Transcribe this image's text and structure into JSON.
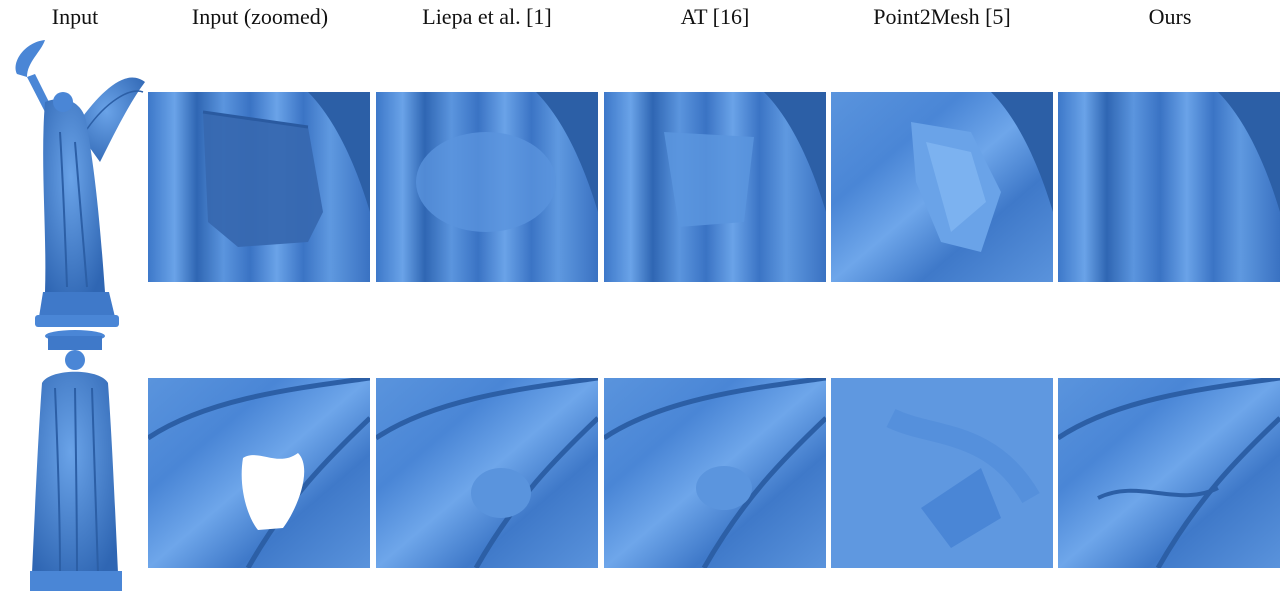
{
  "headers": {
    "input": "Input",
    "input_zoomed": "Input (zoomed)",
    "liepa": "Liepa et al. [1]",
    "at": "AT [16]",
    "point2mesh": "Point2Mesh [5]",
    "ours": "Ours"
  },
  "colors": {
    "mesh_blue": "#4a86d6",
    "mesh_light": "#6aa3e8",
    "mesh_dark": "#2c5fa6",
    "hole": "#ffffff",
    "background": "#ffffff"
  },
  "rows": [
    {
      "name": "angel-statue",
      "panels": [
        "input-zoomed",
        "liepa",
        "at",
        "point2mesh",
        "ours"
      ]
    },
    {
      "name": "caryatid-statue",
      "panels": [
        "input-zoomed",
        "liepa",
        "at",
        "point2mesh",
        "ours"
      ]
    }
  ]
}
